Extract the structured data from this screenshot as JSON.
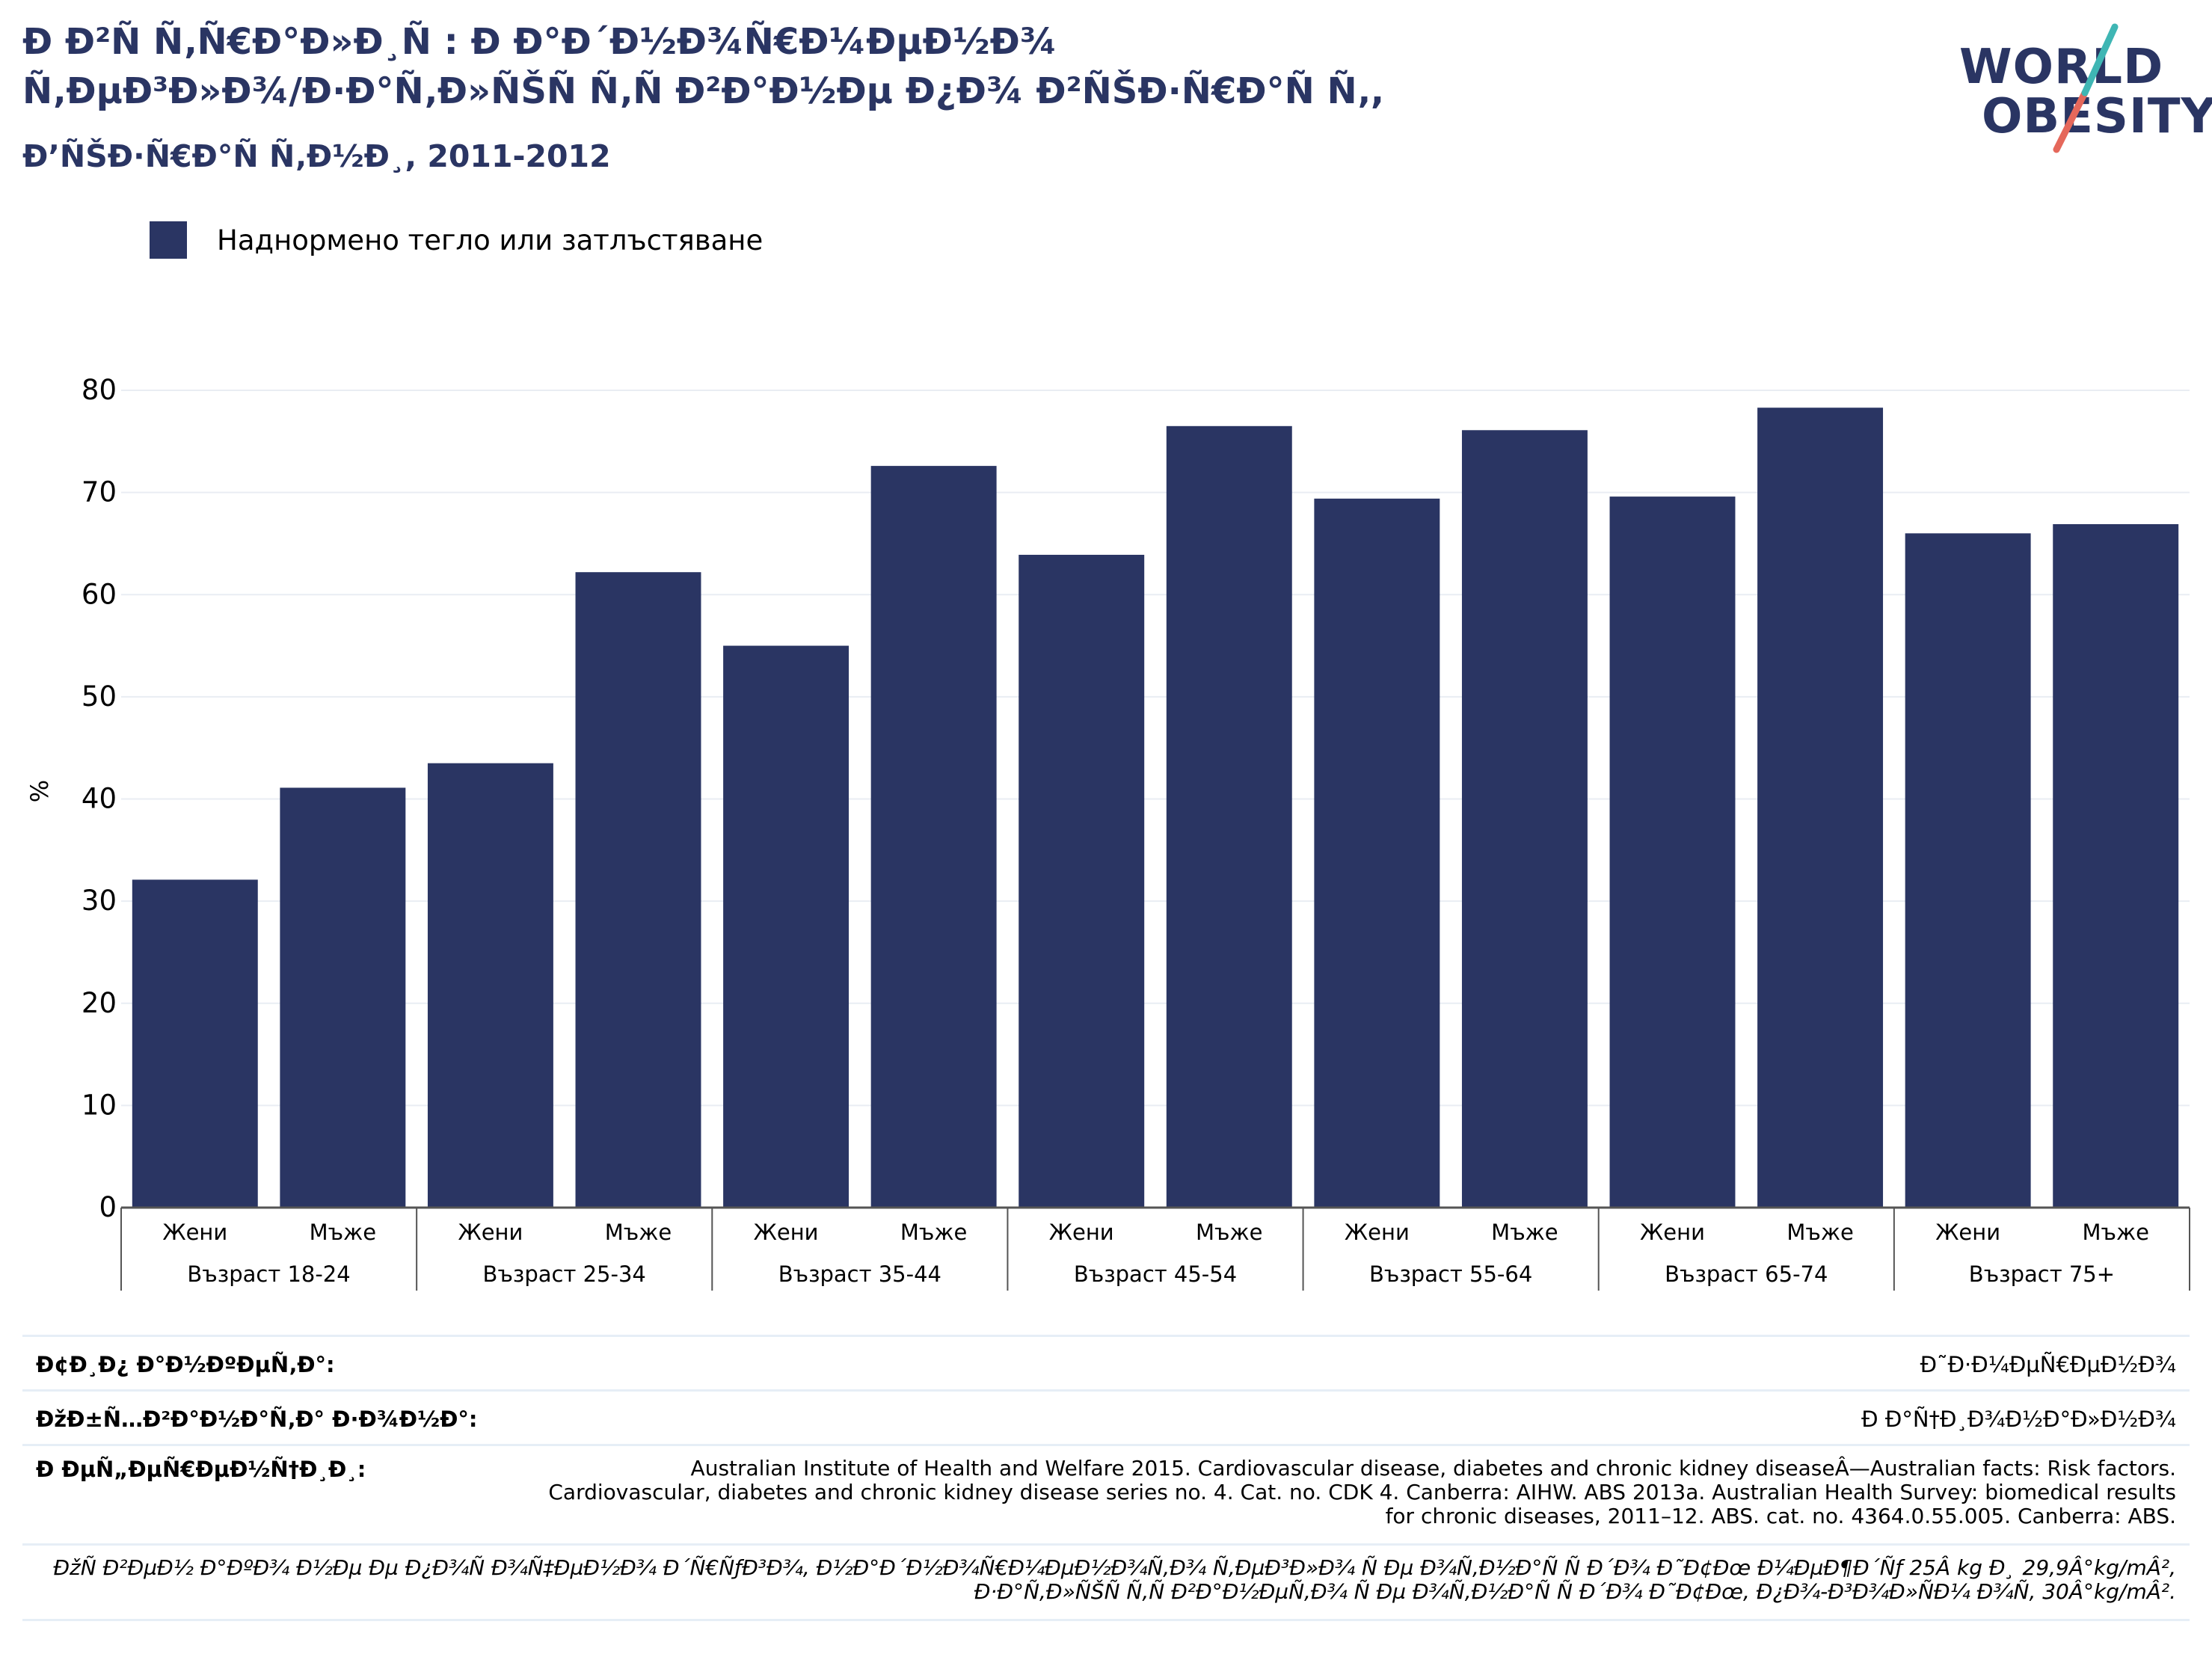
{
  "header": {
    "title_line1": "Ð Ð²Ñ Ñ‚Ñ€Ð°Ð»Ð¸Ñ : Ð Ð°Ð´Ð½Ð¾Ñ€Ð¼ÐµÐ½Ð¾",
    "title_line2": "Ñ‚ÐµÐ³Ð»Ð¾/Ð·Ð°Ñ‚Ð»ÑŠÑ Ñ‚Ñ Ð²Ð°Ð½Ðµ Ð¿Ð¾ Ð²ÑŠÐ·Ñ€Ð°Ñ Ñ‚,",
    "subtitle": "Ð’ÑŠÐ·Ñ€Ð°Ñ Ñ‚Ð½Ð¸, 2011-2012"
  },
  "logo": {
    "line1": "WORLD",
    "line2": "OBESITY"
  },
  "legend": {
    "label": "Наднормено тегло или затлъстяване",
    "color": "#2a3563"
  },
  "chart_data": {
    "type": "bar",
    "ylabel": "%",
    "ylim": [
      0,
      80
    ],
    "yticks": [
      0,
      10,
      20,
      30,
      40,
      50,
      60,
      70,
      80
    ],
    "grid": true,
    "legend_position": "top-left",
    "bar_color": "#2a3563",
    "groups": [
      "Възраст 18-24",
      "Възраст 25-34",
      "Възраст 35-44",
      "Възраст 45-54",
      "Възраст 55-64",
      "Възраст 65-74",
      "Възраст 75+"
    ],
    "subcategories": [
      "Жени",
      "Мъже"
    ],
    "series": [
      {
        "name": "Наднормено тегло или затлъстяване",
        "values": [
          32.1,
          41.1,
          43.5,
          62.2,
          55.0,
          72.6,
          63.9,
          76.5,
          69.4,
          76.1,
          69.6,
          78.3,
          66.0,
          66.9
        ]
      }
    ]
  },
  "footer": {
    "type_label": "Ð¢Ð¸Ð¿ Ð°Ð½ÐºÐµÑ‚Ð°:",
    "type_value": "Ð˜Ð·Ð¼ÐµÑ€ÐµÐ½Ð¾",
    "scope_label": "ÐžÐ±Ñ…Ð²Ð°Ð½Ð°Ñ‚Ð° Ð·Ð¾Ð½Ð°:",
    "scope_value": "Ð Ð°Ñ†Ð¸Ð¾Ð½Ð°Ð»Ð½Ð¾",
    "refs_label": "Ð ÐµÑ„ÐµÑ€ÐµÐ½Ñ†Ð¸Ð¸:",
    "refs_value": "Australian Institute of Health and Welfare 2015. Cardiovascular disease, diabetes and chronic kidney diseaseÂ—Australian facts: Risk factors. Cardiovascular, diabetes and chronic kidney disease series no. 4. Cat. no. CDK 4. Canberra: AIHW. ABS 2013a. Australian Health Survey: biomedical results for chronic diseases, 2011–12. ABS. cat. no. 4364.0.55.005. Canberra: ABS.",
    "note_value": "ÐžÑ Ð²ÐµÐ½ Ð°ÐºÐ¾ Ð½Ðµ Ðµ Ð¿Ð¾Ñ Ð¾Ñ‡ÐµÐ½Ð¾ Ð´Ñ€ÑƒÐ³Ð¾, Ð½Ð°Ð´Ð½Ð¾Ñ€Ð¼ÐµÐ½Ð¾Ñ‚Ð¾ Ñ‚ÐµÐ³Ð»Ð¾ Ñ Ðµ Ð¾Ñ‚Ð½Ð°Ñ Ñ  Ð´Ð¾ Ð˜Ð¢Ðœ Ð¼ÐµÐ¶Ð´Ñƒ 25Â kg Ð¸ 29,9Â°kg/mÂ², Ð·Ð°Ñ‚Ð»ÑŠÑ Ñ‚Ñ Ð²Ð°Ð½ÐµÑ‚Ð¾ Ñ Ðµ Ð¾Ñ‚Ð½Ð°Ñ Ñ  Ð´Ð¾ Ð˜Ð¢Ðœ, Ð¿Ð¾-Ð³Ð¾Ð»ÑÐ¼ Ð¾Ñ‚ 30Â°kg/mÂ²."
  }
}
